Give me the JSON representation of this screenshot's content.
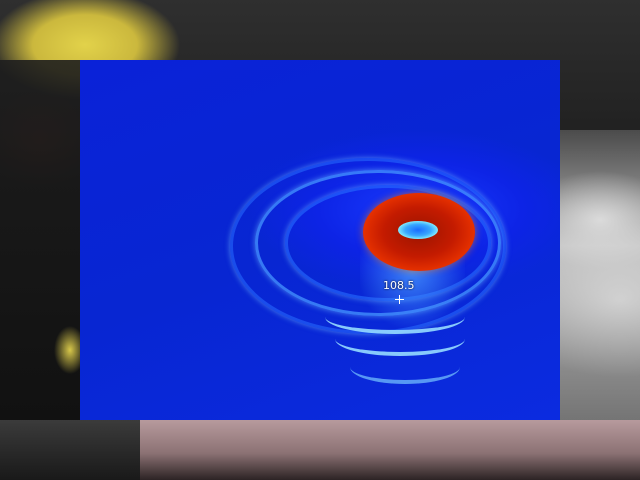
{
  "thermal_view": {
    "spot_temperature": "108.5"
  }
}
